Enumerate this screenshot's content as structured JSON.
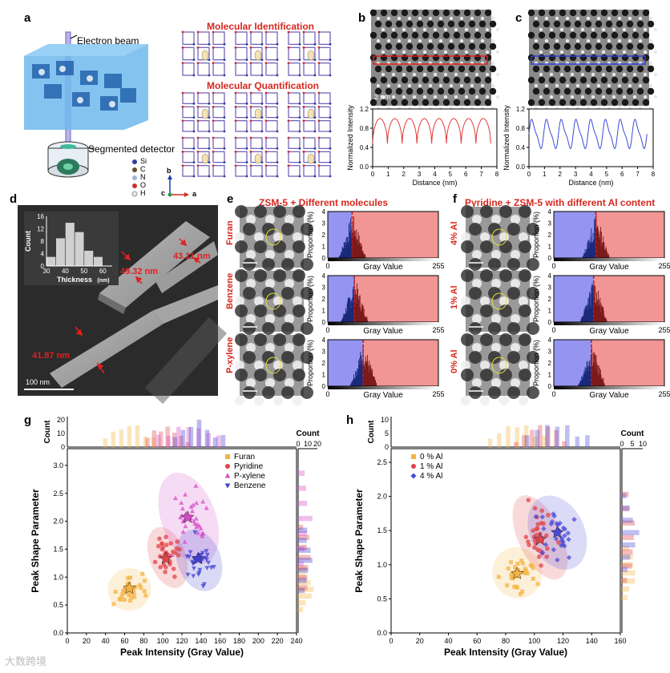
{
  "panel_labels": {
    "a": "a",
    "b": "b",
    "c": "c",
    "d": "d",
    "e": "e",
    "f": "f",
    "g": "g",
    "h": "h"
  },
  "panel_a": {
    "electron_beam": "Electron beam",
    "segmented_detector": "Segmented detector",
    "molecular_identification": "Molecular Identification",
    "molecular_quantification": "Molecular Quantification",
    "legend": [
      "Si",
      "C",
      "N",
      "O",
      "H"
    ],
    "legend_colors": [
      "#2b3f9e",
      "#6b4a2a",
      "#9fb4d8",
      "#c9302c",
      "#e6e6e6"
    ],
    "axes": {
      "b": "b",
      "c": "c",
      "a": "a"
    }
  },
  "panel_b": {
    "scale": "2 nm",
    "chart_data": {
      "type": "line",
      "xlabel": "Distance (nm)",
      "ylabel": "Normalized Intensity",
      "xticks": [
        "0",
        "1",
        "2",
        "3",
        "4",
        "5",
        "6",
        "7",
        "8"
      ],
      "yticks": [
        "0.0",
        "0.4",
        "0.8",
        "1.2"
      ],
      "xlim": [
        0,
        8
      ],
      "ylim": [
        0,
        1.2
      ],
      "color": "#e23b3b",
      "description_series": "periodic peaks ~1.0 with minima ~0.45, period ~0.95 nm"
    }
  },
  "panel_c": {
    "chart_data": {
      "type": "line",
      "xlabel": "Distance (nm)",
      "ylabel": "Normalized Intensity",
      "xticks": [
        "0",
        "1",
        "2",
        "3",
        "4",
        "5",
        "6",
        "7",
        "8"
      ],
      "yticks": [
        "0.0",
        "0.4",
        "0.8",
        "1.2"
      ],
      "xlim": [
        0,
        8
      ],
      "ylim": [
        0,
        1.2
      ],
      "color": "#3b4bd6"
    }
  },
  "panel_d": {
    "scale": "100 nm",
    "measurements": [
      "49.32 nm",
      "43.11 nm",
      "41.87 nm"
    ],
    "inset_chart_data": {
      "type": "bar",
      "xlabel": "Thickness",
      "xlabel_unit": "(nm)",
      "ylabel": "Count",
      "x": [
        32.5,
        37.5,
        42.5,
        47.5,
        52.5,
        57.5
      ],
      "values": [
        3,
        9,
        14,
        11,
        5,
        3
      ],
      "xticks": [
        "30",
        "40",
        "50",
        "60"
      ],
      "yticks": [
        "0",
        "4",
        "8",
        "12",
        "16"
      ],
      "ylim": [
        0,
        16
      ],
      "xlim": [
        30,
        65
      ]
    }
  },
  "panel_e": {
    "title": "ZSM-5 + Different molecules",
    "rows": [
      "Furan",
      "Benzene",
      "P-xylene"
    ],
    "xlabel": "Gray Value",
    "ylabel": "Proportion (%)",
    "xticks": [
      "0",
      "255"
    ],
    "yticks": [
      "0",
      "1",
      "2",
      "3",
      "4"
    ],
    "thresholds": [
      0.22,
      0.24,
      0.32
    ]
  },
  "panel_f": {
    "title": "Pyridine + ZSM-5 with different Al content",
    "rows": [
      "4% Al",
      "1% Al",
      "0% Al"
    ],
    "xlabel": "Gray Value",
    "ylabel": "Proportion (%)",
    "xticks": [
      "0",
      "255"
    ],
    "yticks": [
      "0",
      "1",
      "2",
      "3",
      "4"
    ],
    "thresholds": [
      0.38,
      0.36,
      0.34
    ]
  },
  "panel_g": {
    "chart_data": {
      "type": "scatter",
      "xlabel": "Peak Intensity (Gray Value)",
      "ylabel": "Peak Shape Parameter",
      "xlim": [
        0,
        240
      ],
      "ylim": [
        0,
        3.3
      ],
      "xticks": [
        "0",
        "20",
        "40",
        "60",
        "80",
        "100",
        "120",
        "140",
        "160",
        "180",
        "200",
        "220",
        "240"
      ],
      "yticks": [
        "0.0",
        "0.5",
        "1.0",
        "1.5",
        "2.0",
        "2.5",
        "3.0"
      ],
      "top_hist_ylabel": "Count",
      "top_hist_yticks": [
        "0",
        "10",
        "20"
      ],
      "right_hist_xlabel": "Count",
      "right_hist_xticks": [
        "0",
        "10",
        "20"
      ],
      "legend": [
        "Furan",
        "Pyridine",
        "P-xylene",
        "Benzene"
      ],
      "series": [
        {
          "name": "Furan",
          "color": "#f5b342",
          "center": [
            65,
            0.78
          ],
          "spread": [
            12,
            0.2
          ],
          "star": [
            65,
            0.8
          ]
        },
        {
          "name": "Pyridine",
          "color": "#e0444a",
          "center": [
            105,
            1.35
          ],
          "spread": [
            10,
            0.3
          ],
          "star": [
            103,
            1.33
          ]
        },
        {
          "name": "P-xylene",
          "color": "#d44bc7",
          "center": [
            127,
            2.05
          ],
          "spread": [
            15,
            0.45
          ],
          "star": [
            126,
            2.07
          ]
        },
        {
          "name": "Benzene",
          "color": "#3f3fd1",
          "center": [
            138,
            1.3
          ],
          "spread": [
            12,
            0.3
          ],
          "star": [
            137,
            1.33
          ]
        }
      ]
    }
  },
  "panel_h": {
    "chart_data": {
      "type": "scatter",
      "xlabel": "Peak Intensity (Gray Value)",
      "ylabel": "Peak Shape Parameter",
      "xlim": [
        0,
        160
      ],
      "ylim": [
        0,
        2.7
      ],
      "xticks": [
        "0",
        "20",
        "40",
        "60",
        "80",
        "100",
        "120",
        "140",
        "160"
      ],
      "yticks": [
        "0.0",
        "0.5",
        "1.0",
        "1.5",
        "2.0",
        "2.5"
      ],
      "top_hist_ylabel": "Count",
      "top_hist_yticks": [
        "0",
        "5",
        "10"
      ],
      "right_hist_xlabel": "Count",
      "right_hist_xticks": [
        "0",
        "5",
        "10"
      ],
      "legend": [
        "0 % Al",
        "1 % Al",
        "4 % Al"
      ],
      "series": [
        {
          "name": "0 % Al",
          "color": "#f5b342",
          "center": [
            88,
            0.88
          ],
          "spread": [
            9,
            0.2
          ],
          "star": [
            88,
            0.87
          ]
        },
        {
          "name": "1 % Al",
          "color": "#e0444a",
          "center": [
            104,
            1.4
          ],
          "spread": [
            8,
            0.35
          ],
          "star": [
            104,
            1.37
          ]
        },
        {
          "name": "4 % Al",
          "color": "#4a4ad6",
          "center": [
            116,
            1.47
          ],
          "spread": [
            10,
            0.3
          ],
          "star": [
            116,
            1.47
          ]
        }
      ]
    }
  },
  "watermark": "大数跨境"
}
